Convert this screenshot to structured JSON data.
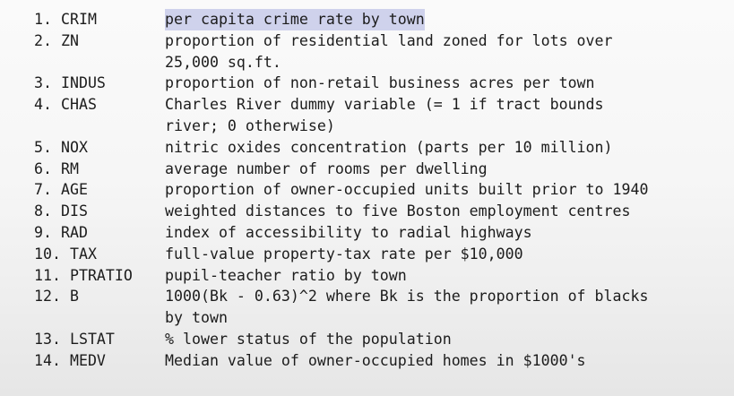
{
  "variables": [
    {
      "label": "1. CRIM",
      "lines": [
        "per capita crime rate by town"
      ],
      "highlighted": true
    },
    {
      "label": "2. ZN",
      "lines": [
        "proportion of residential land zoned for lots over",
        "25,000 sq.ft."
      ]
    },
    {
      "label": "3. INDUS",
      "lines": [
        "proportion of non-retail business acres per town"
      ]
    },
    {
      "label": "4. CHAS",
      "lines": [
        "Charles River dummy variable (= 1 if tract bounds",
        "river; 0 otherwise)"
      ]
    },
    {
      "label": "5. NOX",
      "lines": [
        "nitric oxides concentration (parts per 10 million)"
      ]
    },
    {
      "label": "6. RM",
      "lines": [
        "average number of rooms per dwelling"
      ]
    },
    {
      "label": "7. AGE",
      "lines": [
        "proportion of owner-occupied units built prior to 1940"
      ]
    },
    {
      "label": "8. DIS",
      "lines": [
        "weighted distances to five Boston employment centres"
      ]
    },
    {
      "label": "9. RAD",
      "lines": [
        "index of accessibility to radial highways"
      ]
    },
    {
      "label": "10. TAX",
      "lines": [
        "full-value property-tax rate per $10,000"
      ]
    },
    {
      "label": "11. PTRATIO",
      "lines": [
        "pupil-teacher ratio by town"
      ]
    },
    {
      "label": "12. B",
      "lines": [
        "1000(Bk - 0.63)^2 where Bk is the proportion of blacks",
        "by town"
      ]
    },
    {
      "label": "13. LSTAT",
      "lines": [
        "% lower status of the population"
      ]
    },
    {
      "label": "14. MEDV",
      "lines": [
        "Median value of owner-occupied homes in $1000's"
      ]
    }
  ],
  "colors": {
    "text": "#1c1c1c",
    "highlight": "#cfd2ec"
  }
}
